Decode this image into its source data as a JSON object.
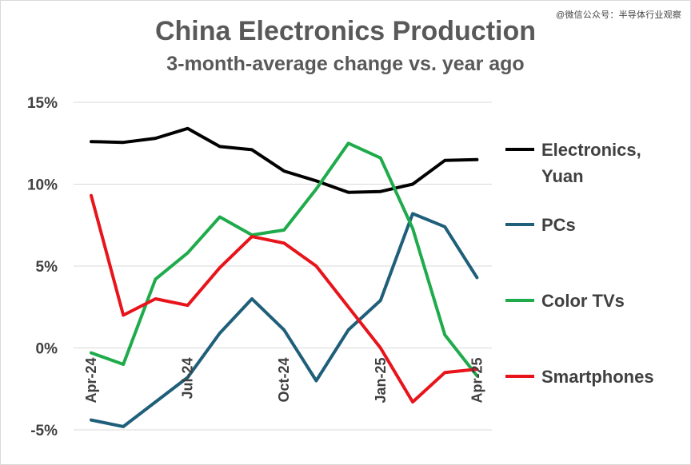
{
  "watermark": "@微信公众号：半导体行业观察",
  "chart_data": {
    "type": "line",
    "title": "China Electronics Production",
    "subtitle": "3-month-average change vs. year ago",
    "xlabel": "",
    "ylabel": "",
    "x": [
      "Apr-24",
      "May-24",
      "Jun-24",
      "Jul-24",
      "Aug-24",
      "Sep-24",
      "Oct-24",
      "Nov-24",
      "Dec-24",
      "Jan-25",
      "Feb-25",
      "Mar-25",
      "Apr-25"
    ],
    "xtick_labels": [
      "Apr-24",
      "Jul-24",
      "Oct-24",
      "Jan-25",
      "Apr-25"
    ],
    "ylim": [
      -5,
      15
    ],
    "yticks": [
      -5,
      0,
      5,
      10,
      15
    ],
    "ytick_labels": [
      "-5%",
      "0%",
      "5%",
      "10%",
      "15%"
    ],
    "grid": "horizontal",
    "legend_position": "right",
    "series": [
      {
        "name": "Electronics, Yuan",
        "name_lines": [
          "Electronics,",
          "Yuan"
        ],
        "color": "#000000",
        "values": [
          12.6,
          12.55,
          12.8,
          13.4,
          12.3,
          12.1,
          10.8,
          10.2,
          9.5,
          9.55,
          10.0,
          11.45,
          11.5
        ]
      },
      {
        "name": "PCs",
        "name_lines": [
          "PCs"
        ],
        "color": "#1f5f7a",
        "values": [
          -4.4,
          -4.8,
          -3.3,
          -1.8,
          0.9,
          3.0,
          1.1,
          -2.0,
          1.1,
          2.9,
          8.2,
          7.4,
          4.3
        ]
      },
      {
        "name": "Color TVs",
        "name_lines": [
          "Color TVs"
        ],
        "color": "#1fab4b",
        "values": [
          -0.3,
          -1.0,
          4.2,
          5.8,
          8.0,
          6.9,
          7.2,
          9.7,
          12.5,
          11.6,
          7.3,
          0.8,
          -1.7
        ]
      },
      {
        "name": "Smartphones",
        "name_lines": [
          "Smartphones"
        ],
        "color": "#e8141b",
        "values": [
          9.3,
          2.0,
          3.0,
          2.6,
          4.9,
          6.8,
          6.4,
          5.0,
          2.5,
          0.0,
          -3.3,
          -1.5,
          -1.3
        ]
      }
    ]
  }
}
